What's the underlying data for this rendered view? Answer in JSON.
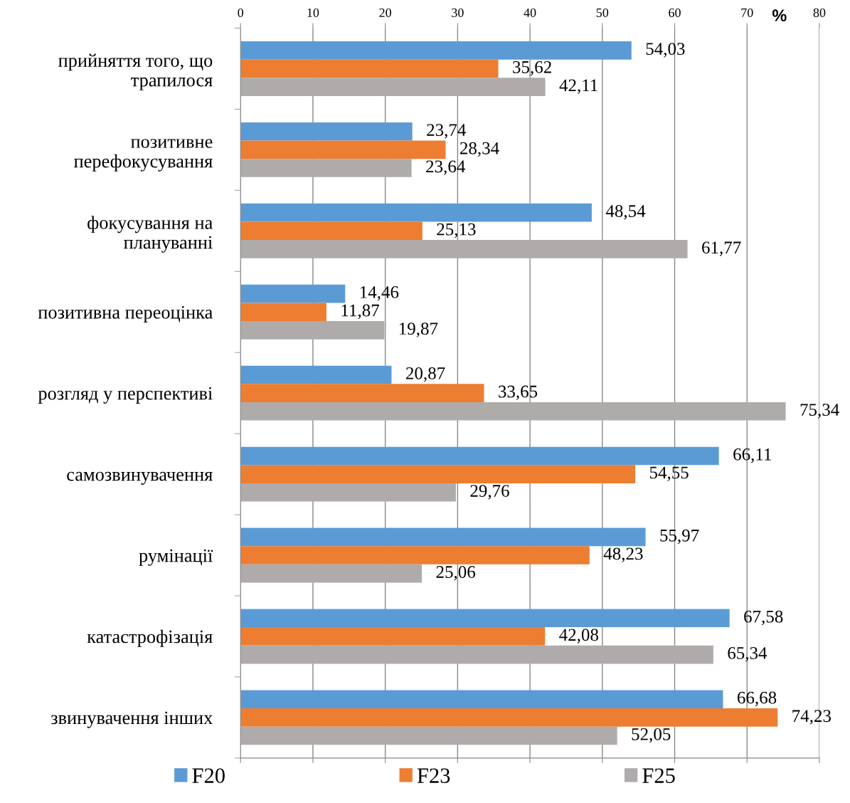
{
  "chart_data": {
    "type": "bar",
    "orientation": "horizontal",
    "xlabel": "%",
    "categories": [
      "прийняття того, що\nтрапилося",
      "позитивне\nперефокусування",
      "фокусування на\nплануванні",
      "позитивна переоцінка",
      "розгляд у перспективі",
      "самозвинувачення",
      "румінації",
      "катастрофізація",
      "звинувачення інших"
    ],
    "series": [
      {
        "name": "F20",
        "color": "#5b9bd5",
        "values": [
          54.03,
          23.74,
          48.54,
          14.46,
          20.87,
          66.11,
          55.97,
          67.58,
          66.68
        ],
        "value_labels": [
          "54,03",
          "23,74",
          "48,54",
          "14,46",
          "20,87",
          "66,11",
          "55,97",
          "67,58",
          "66,68"
        ]
      },
      {
        "name": "F23",
        "color": "#ed7d31",
        "values": [
          35.62,
          28.34,
          25.13,
          11.87,
          33.65,
          54.55,
          48.23,
          42.08,
          74.23
        ],
        "value_labels": [
          "35,62",
          "28,34",
          "25,13",
          "11,87",
          "33,65",
          "54,55",
          "48,23",
          "42,08",
          "74,23"
        ]
      },
      {
        "name": "F25",
        "color": "#afabab",
        "values": [
          42.11,
          23.64,
          61.77,
          19.87,
          75.34,
          29.76,
          25.06,
          65.34,
          52.05
        ],
        "value_labels": [
          "42,11",
          "23,64",
          "61,77",
          "19,87",
          "75,34",
          "29,76",
          "25,06",
          "65,34",
          "52,05"
        ]
      }
    ],
    "xlim": [
      0,
      80
    ],
    "xticks": [
      0,
      10,
      20,
      30,
      40,
      50,
      60,
      70,
      80
    ],
    "grid": "x",
    "legend": "bottom"
  }
}
